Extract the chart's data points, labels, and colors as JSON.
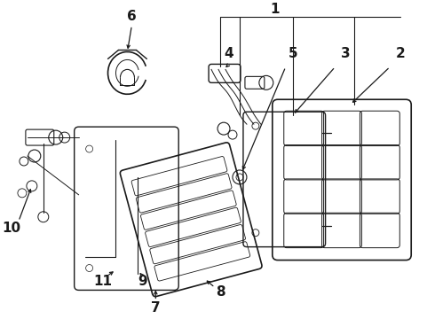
{
  "bg_color": "#ffffff",
  "line_color": "#1a1a1a",
  "fig_width": 4.9,
  "fig_height": 3.6,
  "dpi": 100,
  "label_fontsize": 11
}
